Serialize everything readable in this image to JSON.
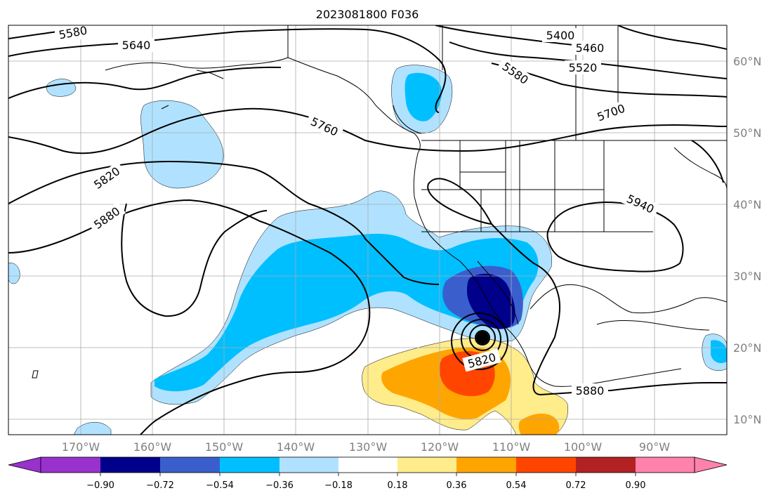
{
  "title": "2023081800 F036",
  "map": {
    "projection": "plate-carree",
    "lon_range": [
      -180,
      -80
    ],
    "lat_range": [
      8,
      66
    ],
    "lon_ticks": [
      "170°W",
      "160°W",
      "150°W",
      "140°W",
      "130°W",
      "120°W",
      "110°W",
      "100°W",
      "90°W"
    ],
    "lat_ticks": [
      "60°N",
      "50°N",
      "40°N",
      "30°N",
      "20°N",
      "10°N"
    ],
    "contour_labels": [
      "5580",
      "5640",
      "5400",
      "5460",
      "5520",
      "5580",
      "5700",
      "5760",
      "5820",
      "5880",
      "5940",
      "5820",
      "5880"
    ],
    "storm_marker": {
      "lon": -114,
      "lat": 21.5
    }
  },
  "colorbar": {
    "tick_labels": [
      "−0.90",
      "−0.72",
      "−0.54",
      "−0.36",
      "−0.18",
      "0.18",
      "0.36",
      "0.54",
      "0.72",
      "0.90"
    ],
    "colors": [
      "#9932CC",
      "#00008B",
      "#3A5FCD",
      "#00BFFF",
      "#B0E2FF",
      "#FFFFFF",
      "#FFEC8B",
      "#FFA500",
      "#FF4500",
      "#B22222",
      "#FF82AB"
    ]
  }
}
